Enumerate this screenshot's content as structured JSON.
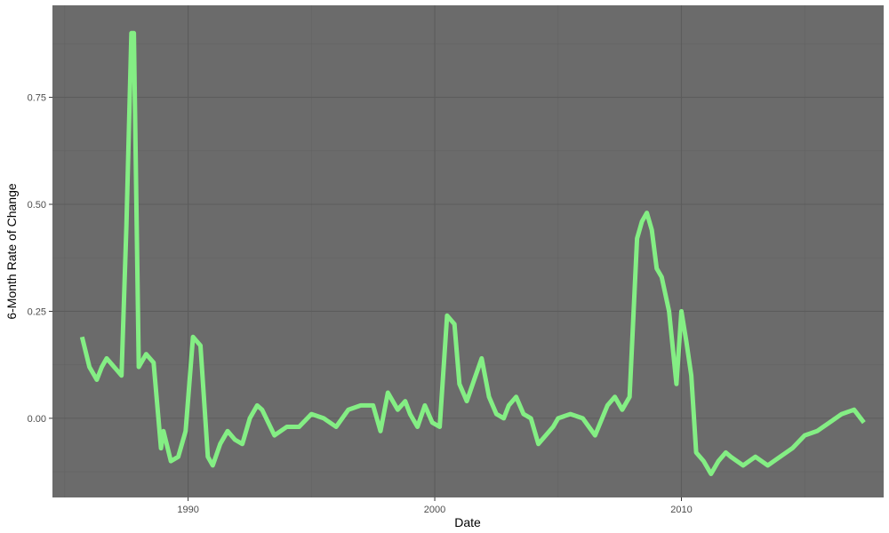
{
  "chart_data": {
    "type": "line",
    "title": "",
    "xlabel": "Date",
    "ylabel": "6-Month Rate of Change",
    "xlim": [
      1984.5,
      2018.2
    ],
    "ylim": [
      -0.185,
      0.965
    ],
    "x_ticks": [
      {
        "value": 1990,
        "label": "1990"
      },
      {
        "value": 2000,
        "label": "2000"
      },
      {
        "value": 2010,
        "label": "2010"
      }
    ],
    "y_ticks": [
      {
        "value": 0.0,
        "label": "0.00"
      },
      {
        "value": 0.25,
        "label": "0.25"
      },
      {
        "value": 0.5,
        "label": "0.50"
      },
      {
        "value": 0.75,
        "label": "0.75"
      }
    ],
    "grid": true,
    "legend": "none",
    "colors": {
      "panel": "#6b6b6b",
      "grid_major": "#5c5c5c",
      "grid_minor": "#636363",
      "line": "#84ee84"
    },
    "series": [
      {
        "x": [
          1985.7,
          1986.0,
          1986.3,
          1986.5,
          1986.7,
          1987.0,
          1987.3,
          1987.5,
          1987.7,
          1987.8,
          1988.0,
          1988.3,
          1988.6,
          1988.9,
          1989.0,
          1989.3,
          1989.6,
          1989.9,
          1990.2,
          1990.5,
          1990.8,
          1991.0,
          1991.3,
          1991.6,
          1991.9,
          1992.2,
          1992.5,
          1992.8,
          1993.0,
          1993.5,
          1994.0,
          1994.5,
          1995.0,
          1995.5,
          1996.0,
          1996.5,
          1997.0,
          1997.5,
          1997.8,
          1998.1,
          1998.5,
          1998.8,
          1999.0,
          1999.3,
          1999.6,
          1999.9,
          2000.2,
          2000.5,
          2000.8,
          2001.0,
          2001.3,
          2001.6,
          2001.9,
          2002.2,
          2002.5,
          2002.8,
          2003.0,
          2003.3,
          2003.6,
          2003.9,
          2004.2,
          2004.5,
          2004.8,
          2005.0,
          2005.5,
          2006.0,
          2006.5,
          2007.0,
          2007.3,
          2007.6,
          2007.9,
          2008.2,
          2008.4,
          2008.6,
          2008.8,
          2009.0,
          2009.2,
          2009.5,
          2009.8,
          2010.0,
          2010.2,
          2010.4,
          2010.6,
          2010.9,
          2011.2,
          2011.5,
          2011.8,
          2012.0,
          2012.5,
          2013.0,
          2013.5,
          2014.0,
          2014.5,
          2015.0,
          2015.5,
          2016.0,
          2016.5,
          2017.0,
          2017.4
        ],
        "y": [
          0.19,
          0.12,
          0.09,
          0.12,
          0.14,
          0.12,
          0.1,
          0.45,
          0.9,
          0.9,
          0.12,
          0.15,
          0.13,
          -0.07,
          -0.03,
          -0.1,
          -0.09,
          -0.03,
          0.19,
          0.17,
          -0.09,
          -0.11,
          -0.06,
          -0.03,
          -0.05,
          -0.06,
          0.0,
          0.03,
          0.02,
          -0.04,
          -0.02,
          -0.02,
          0.01,
          0.0,
          -0.02,
          0.02,
          0.03,
          0.03,
          -0.03,
          0.06,
          0.02,
          0.04,
          0.01,
          -0.02,
          0.03,
          -0.01,
          -0.02,
          0.24,
          0.22,
          0.08,
          0.04,
          0.09,
          0.14,
          0.05,
          0.01,
          0.0,
          0.03,
          0.05,
          0.01,
          0.0,
          -0.06,
          -0.04,
          -0.02,
          0.0,
          0.01,
          0.0,
          -0.04,
          0.03,
          0.05,
          0.02,
          0.05,
          0.42,
          0.46,
          0.48,
          0.44,
          0.35,
          0.33,
          0.25,
          0.08,
          0.25,
          0.18,
          0.1,
          -0.08,
          -0.1,
          -0.13,
          -0.1,
          -0.08,
          -0.09,
          -0.11,
          -0.09,
          -0.11,
          -0.09,
          -0.07,
          -0.04,
          -0.03,
          -0.01,
          0.01,
          0.02,
          -0.01
        ]
      }
    ]
  }
}
